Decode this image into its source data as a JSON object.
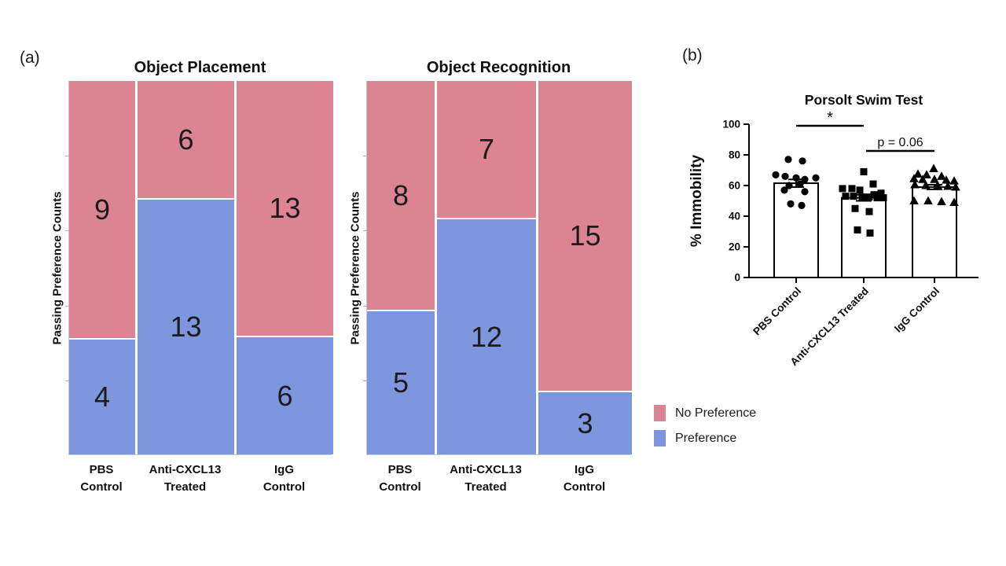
{
  "figure": {
    "panel_a_label": "(a)",
    "panel_b_label": "(b)",
    "colors": {
      "no_preference": "#DD8492",
      "preference": "#7D96DD",
      "marker": "#000000",
      "spine": "#c9c9c9"
    },
    "legend": [
      {
        "label": "No Preference",
        "color_key": "no_preference"
      },
      {
        "label": "Preference",
        "color_key": "preference"
      }
    ]
  },
  "chart_data": [
    {
      "id": "object-placement",
      "type": "mosaic-stacked-bar",
      "title": "Object Placement",
      "ylabel": "Passing Preference Counts",
      "categories": [
        [
          "PBS",
          "Control"
        ],
        [
          "Anti-CXCL13",
          "Treated"
        ],
        [
          "IgG",
          "Control"
        ]
      ],
      "series": [
        {
          "name": "No Preference",
          "values": [
            9,
            6,
            13
          ]
        },
        {
          "name": "Preference",
          "values": [
            4,
            13,
            6
          ]
        }
      ],
      "column_totals": [
        13,
        19,
        19
      ],
      "bar_width_proportional_to_total": true
    },
    {
      "id": "object-recognition",
      "type": "mosaic-stacked-bar",
      "title": "Object Recognition",
      "ylabel": "Passing Preference Counts",
      "categories": [
        [
          "PBS",
          "Control"
        ],
        [
          "Anti-CXCL13",
          "Treated"
        ],
        [
          "IgG",
          "Control"
        ]
      ],
      "series": [
        {
          "name": "No Preference",
          "values": [
            8,
            7,
            15
          ]
        },
        {
          "name": "Preference",
          "values": [
            5,
            12,
            3
          ]
        }
      ],
      "column_totals": [
        13,
        19,
        18
      ],
      "bar_width_proportional_to_total": true
    },
    {
      "id": "porsolt-swim-test",
      "type": "bar-scatter",
      "title": "Porsolt Swim Test",
      "ylabel": "% Immobility",
      "ylim": [
        0,
        100
      ],
      "yticks": [
        0,
        20,
        40,
        60,
        80,
        100
      ],
      "categories": [
        "PBS Control",
        "Anti-CXCL13 Treated",
        "IgG Control"
      ],
      "bar_means": [
        61.5,
        52,
        59
      ],
      "bar_sems": [
        2.5,
        2,
        1.5
      ],
      "markers": [
        "circle",
        "square",
        "triangle"
      ],
      "points": [
        {
          "group": "PBS Control",
          "marker": "circle",
          "values": [
            {
              "dx": -10,
              "v": 77
            },
            {
              "dx": 8,
              "v": 76
            },
            {
              "dx": -26,
              "v": 67
            },
            {
              "dx": -14,
              "v": 66
            },
            {
              "dx": 0,
              "v": 65
            },
            {
              "dx": 25,
              "v": 65
            },
            {
              "dx": 11,
              "v": 64
            },
            {
              "dx": 5,
              "v": 61
            },
            {
              "dx": -9,
              "v": 60
            },
            {
              "dx": -15,
              "v": 57
            },
            {
              "dx": 11,
              "v": 56
            },
            {
              "dx": -7,
              "v": 48
            },
            {
              "dx": 7,
              "v": 47
            }
          ]
        },
        {
          "group": "Anti-CXCL13 Treated",
          "marker": "square",
          "values": [
            {
              "dx": 0,
              "v": 69
            },
            {
              "dx": 12,
              "v": 61
            },
            {
              "dx": -27,
              "v": 58
            },
            {
              "dx": -15,
              "v": 58
            },
            {
              "dx": -5,
              "v": 57
            },
            {
              "dx": 22,
              "v": 55
            },
            {
              "dx": 13,
              "v": 54
            },
            {
              "dx": -23,
              "v": 53
            },
            {
              "dx": -13,
              "v": 53
            },
            {
              "dx": -2,
              "v": 52.5
            },
            {
              "dx": 7,
              "v": 52.5
            },
            {
              "dx": 17,
              "v": 52
            },
            {
              "dx": 25,
              "v": 52
            },
            {
              "dx": -11,
              "v": 45
            },
            {
              "dx": 7,
              "v": 43
            },
            {
              "dx": -8,
              "v": 31
            },
            {
              "dx": 8,
              "v": 29
            }
          ]
        },
        {
          "group": "IgG Control",
          "marker": "triangle",
          "values": [
            {
              "dx": -1,
              "v": 71
            },
            {
              "dx": -21,
              "v": 67.5
            },
            {
              "dx": -10,
              "v": 67
            },
            {
              "dx": 9,
              "v": 66
            },
            {
              "dx": -26,
              "v": 64.5
            },
            {
              "dx": -15,
              "v": 64
            },
            {
              "dx": 0,
              "v": 64
            },
            {
              "dx": 15,
              "v": 63.5
            },
            {
              "dx": 25,
              "v": 63
            },
            {
              "dx": -25,
              "v": 60.5
            },
            {
              "dx": -11,
              "v": 60
            },
            {
              "dx": 4,
              "v": 60
            },
            {
              "dx": 17,
              "v": 59.5
            },
            {
              "dx": 27,
              "v": 59
            },
            {
              "dx": -26,
              "v": 50
            },
            {
              "dx": -8,
              "v": 50
            },
            {
              "dx": 9,
              "v": 49.5
            },
            {
              "dx": 25,
              "v": 49
            }
          ]
        }
      ],
      "annotations": [
        {
          "text": "*",
          "between": [
            0,
            1
          ],
          "style": "sig-line"
        },
        {
          "text": "p = 0.06",
          "between": [
            1,
            2
          ],
          "style": "sig-line"
        }
      ],
      "legend_position": "none",
      "grid": false
    }
  ]
}
